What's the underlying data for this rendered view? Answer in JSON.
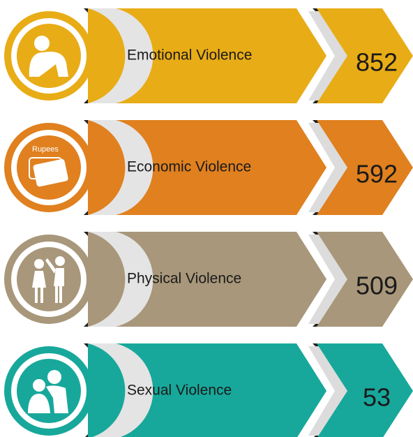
{
  "items": [
    {
      "label": "Emotional Violence",
      "value": 852,
      "color": "#e8ac16"
    },
    {
      "label": "Economic Violence",
      "value": 592,
      "color": "#e0801f",
      "icon_text": "Rupees"
    },
    {
      "label": "Physical Violence",
      "value": 509,
      "color": "#a8977a"
    },
    {
      "label": "Sexual Violence",
      "value": 53,
      "color": "#17a89b"
    }
  ]
}
